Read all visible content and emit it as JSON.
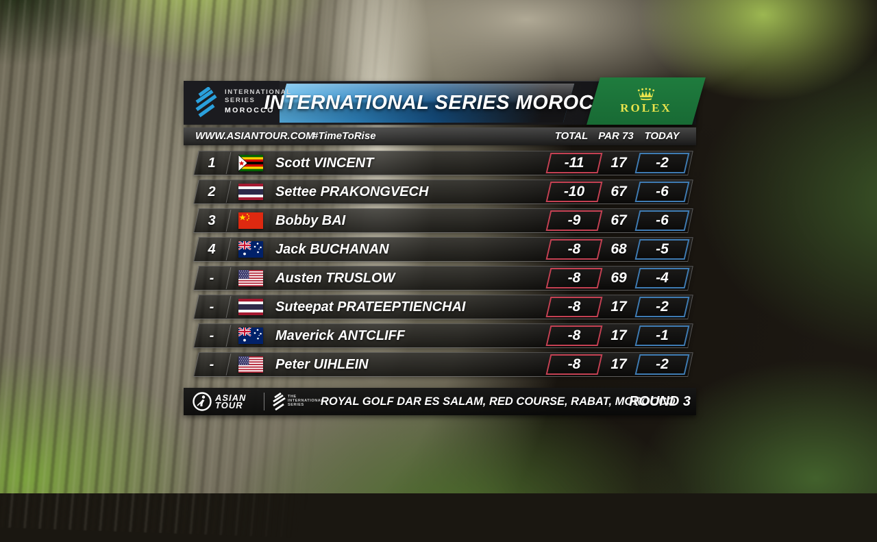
{
  "header": {
    "logo": {
      "line1": "INTERNATIONAL",
      "line2": "SERIES",
      "line3": "MOROCCO"
    },
    "title": "INTERNATIONAL SERIES MOROCCO",
    "sponsor": {
      "name": "ROLEX"
    }
  },
  "subheader": {
    "website": "WWW.ASIANTOUR.COM",
    "hashtag": "#TimeToRise",
    "columns": [
      "TOTAL",
      "PAR 73",
      "TODAY"
    ]
  },
  "leaderboard": {
    "rows": [
      {
        "pos": "1",
        "flag": "zw",
        "first": "Scott",
        "last": "VINCENT",
        "total": "-11",
        "par": "17",
        "today": "-2"
      },
      {
        "pos": "2",
        "flag": "th",
        "first": "Settee",
        "last": "PRAKONGVECH",
        "total": "-10",
        "par": "67",
        "today": "-6"
      },
      {
        "pos": "3",
        "flag": "cn",
        "first": "Bobby",
        "last": "BAI",
        "total": "-9",
        "par": "67",
        "today": "-6"
      },
      {
        "pos": "4",
        "flag": "au",
        "first": "Jack",
        "last": "BUCHANAN",
        "total": "-8",
        "par": "68",
        "today": "-5"
      },
      {
        "pos": "-",
        "flag": "us",
        "first": "Austen",
        "last": "TRUSLOW",
        "total": "-8",
        "par": "69",
        "today": "-4"
      },
      {
        "pos": "-",
        "flag": "th",
        "first": "Suteepat",
        "last": "PRATEEPTIENCHAI",
        "total": "-8",
        "par": "17",
        "today": "-2"
      },
      {
        "pos": "-",
        "flag": "au",
        "first": "Maverick",
        "last": "ANTCLIFF",
        "total": "-8",
        "par": "17",
        "today": "-1"
      },
      {
        "pos": "-",
        "flag": "us",
        "first": "Peter",
        "last": "UIHLEIN",
        "total": "-8",
        "par": "17",
        "today": "-2"
      }
    ]
  },
  "footer": {
    "tour_line1": "ASIAN",
    "tour_line2": "TOUR",
    "series_logo": {
      "l1": "THE",
      "l2": "INTERNATIONAL",
      "l3": "SERIES"
    },
    "venue": "ROYAL GOLF DAR ES SALAM, RED COURSE, RABAT, MOROCCO",
    "round": "ROUND 3"
  },
  "colors": {
    "accent_red": "#c54153",
    "accent_blue": "#3f7cb4",
    "rolex_green": "#1f7c3e",
    "rolex_gold": "#e9e44c",
    "logo_blue": "#2aa0dc"
  }
}
